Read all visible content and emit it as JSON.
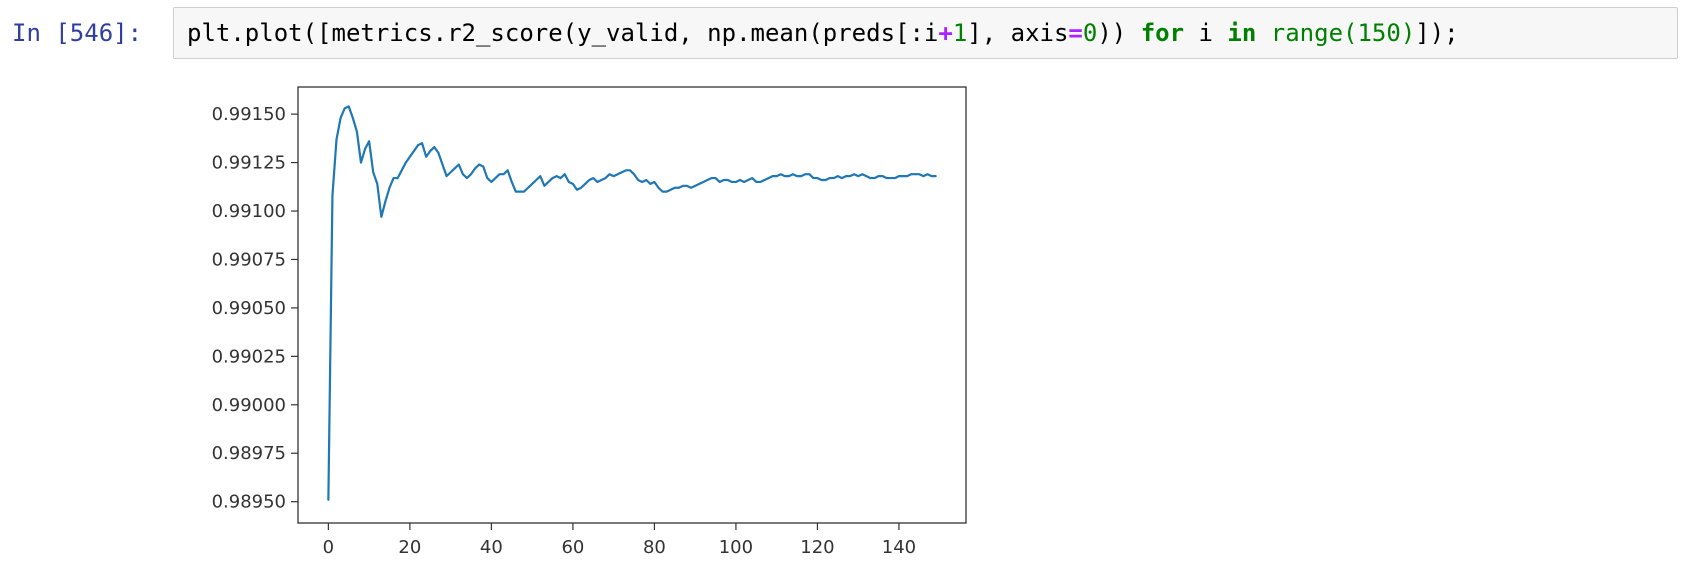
{
  "cell": {
    "prompt": "In [546]:",
    "code_tokens": [
      {
        "text": "plt.plot([metrics.r2_score(y_valid, np.mean(preds[:i",
        "kind": "plain"
      },
      {
        "text": "+",
        "kind": "op"
      },
      {
        "text": "1",
        "kind": "num"
      },
      {
        "text": "], axis",
        "kind": "plain"
      },
      {
        "text": "=",
        "kind": "op"
      },
      {
        "text": "0",
        "kind": "num"
      },
      {
        "text": ")) ",
        "kind": "plain"
      },
      {
        "text": "for",
        "kind": "kw"
      },
      {
        "text": " i ",
        "kind": "plain"
      },
      {
        "text": "in",
        "kind": "kw"
      },
      {
        "text": " ",
        "kind": "plain"
      },
      {
        "text": "range",
        "kind": "builtin"
      },
      {
        "text": "(",
        "kind": "builtin"
      },
      {
        "text": "150",
        "kind": "num"
      },
      {
        "text": ")",
        "kind": "builtin"
      },
      {
        "text": "]);",
        "kind": "plain"
      }
    ]
  },
  "colors": {
    "prompt": "#303f9f",
    "line": "#1f77b4",
    "keyword": "#008000",
    "operator": "#aa22ff"
  },
  "chart_data": {
    "type": "line",
    "title": "",
    "xlabel": "",
    "ylabel": "",
    "xlim": [
      -7.45,
      156.45
    ],
    "ylim": [
      0.98939,
      0.99164
    ],
    "grid": false,
    "xticks": [
      0,
      20,
      40,
      60,
      80,
      100,
      120,
      140
    ],
    "xtick_labels": [
      "0",
      "20",
      "40",
      "60",
      "80",
      "100",
      "120",
      "140"
    ],
    "yticks": [
      0.9895,
      0.98975,
      0.99,
      0.99025,
      0.9905,
      0.99075,
      0.991,
      0.99125,
      0.9915
    ],
    "ytick_labels": [
      "0.98950",
      "0.98975",
      "0.99000",
      "0.99025",
      "0.99050",
      "0.99075",
      "0.99100",
      "0.99125",
      "0.99150"
    ],
    "series": [
      {
        "values": [
          0.98951,
          0.99108,
          0.99137,
          0.99148,
          0.99153,
          0.99154,
          0.99148,
          0.99141,
          0.99125,
          0.99132,
          0.99136,
          0.9912,
          0.99114,
          0.99097,
          0.99105,
          0.99112,
          0.99117,
          0.99117,
          0.99121,
          0.99125,
          0.99128,
          0.99131,
          0.99134,
          0.99135,
          0.99128,
          0.99131,
          0.99133,
          0.9913,
          0.99124,
          0.99118,
          0.9912,
          0.99122,
          0.99124,
          0.99119,
          0.99117,
          0.99119,
          0.99122,
          0.99124,
          0.99123,
          0.99117,
          0.99115,
          0.99117,
          0.99119,
          0.99119,
          0.99121,
          0.99115,
          0.9911,
          0.9911,
          0.9911,
          0.99112,
          0.99114,
          0.99116,
          0.99118,
          0.99113,
          0.99115,
          0.99117,
          0.99118,
          0.99117,
          0.99119,
          0.99115,
          0.99114,
          0.99111,
          0.99112,
          0.99114,
          0.99116,
          0.99117,
          0.99115,
          0.99116,
          0.99117,
          0.99119,
          0.99118,
          0.99119,
          0.9912,
          0.99121,
          0.99121,
          0.99119,
          0.99116,
          0.99115,
          0.99116,
          0.99114,
          0.99115,
          0.99112,
          0.9911,
          0.9911,
          0.99111,
          0.99112,
          0.99112,
          0.99113,
          0.99113,
          0.99112,
          0.99113,
          0.99114,
          0.99115,
          0.99116,
          0.99117,
          0.99117,
          0.99115,
          0.99116,
          0.99116,
          0.99115,
          0.99115,
          0.99116,
          0.99115,
          0.99116,
          0.99117,
          0.99115,
          0.99115,
          0.99116,
          0.99117,
          0.99118,
          0.99118,
          0.99119,
          0.99118,
          0.99118,
          0.99119,
          0.99118,
          0.99118,
          0.99119,
          0.99119,
          0.99117,
          0.99117,
          0.99116,
          0.99116,
          0.99117,
          0.99117,
          0.99118,
          0.99117,
          0.99118,
          0.99118,
          0.99119,
          0.99118,
          0.99119,
          0.99118,
          0.99117,
          0.99117,
          0.99118,
          0.99118,
          0.99117,
          0.99117,
          0.99117,
          0.99118,
          0.99118,
          0.99118,
          0.99119,
          0.99119,
          0.99119,
          0.99118,
          0.99119,
          0.99118,
          0.99118
        ]
      }
    ]
  }
}
